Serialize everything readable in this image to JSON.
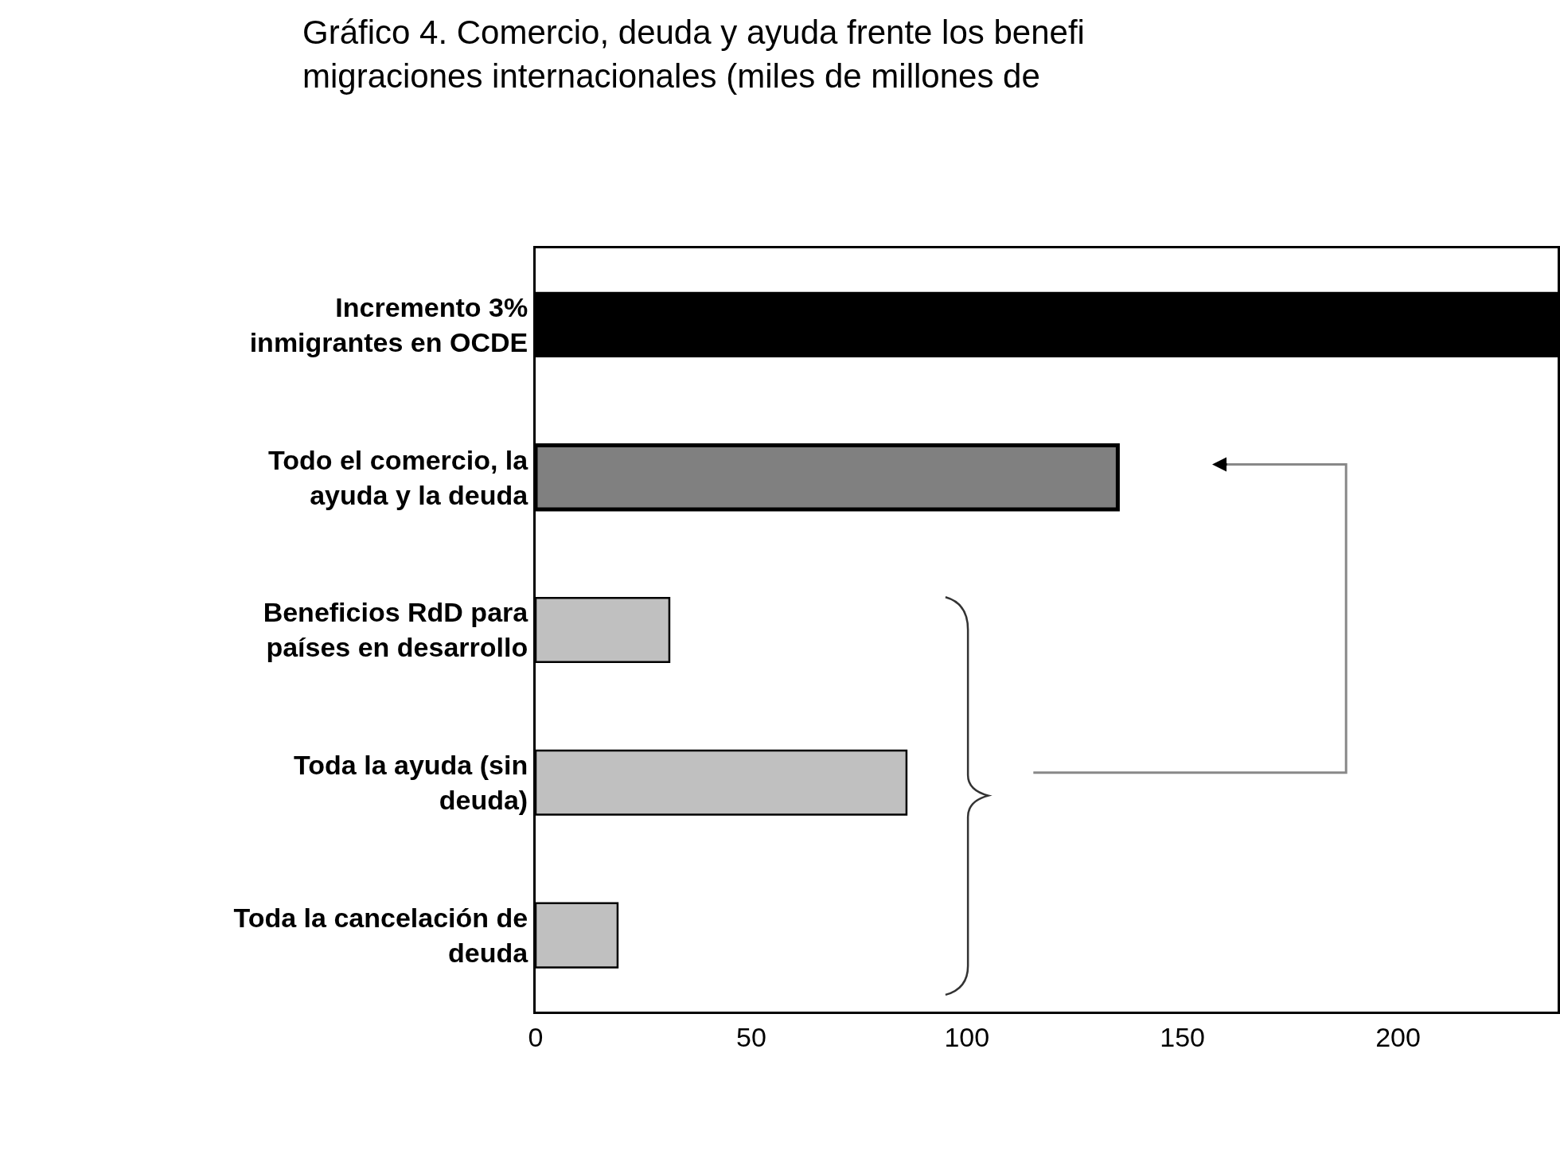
{
  "chart_data": {
    "type": "bar",
    "orientation": "horizontal",
    "title": "Gráfico 4. Comercio, deuda y ayuda frente los benefi\nmigraciones internacionales (miles de millones de",
    "categories": [
      "Incremento 3% inmigrantes en OCDE",
      "Todo el comercio, la ayuda y la deuda",
      "Beneficios RdD para países en desarrollo",
      "Toda la ayuda (sin deuda)",
      "Toda la cancelación de deuda"
    ],
    "values": [
      237,
      135,
      31,
      86,
      19
    ],
    "colors": [
      "#000000",
      "#808080",
      "#c0c0c0",
      "#c0c0c0",
      "#c0c0c0"
    ],
    "xlim": [
      0,
      237
    ],
    "xticks": [
      0,
      50,
      100,
      150,
      200
    ]
  }
}
